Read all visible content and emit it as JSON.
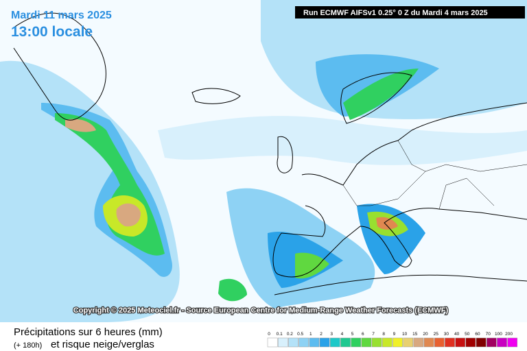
{
  "header": {
    "date": "Mardi 11 mars 2025",
    "time": "13:00 locale",
    "run": "Run ECMWF AIFSv1 0.25° 0 Z du Mardi 4 mars 2025"
  },
  "map": {
    "copyright": "Copyright © 2025 Meteociel.fr - Source European Centre for Medium-Range Weather Forecasts (ECMWF)"
  },
  "legend": {
    "title": "Précipitations sur 6 heures (mm)",
    "lead_time": "(+ 180h)",
    "subtitle": "et risque neige/verglas",
    "levels": [
      {
        "value": 0,
        "color": "#ffffff"
      },
      {
        "value": 0.1,
        "color": "#d8f0fc"
      },
      {
        "value": 0.2,
        "color": "#b4e2f8"
      },
      {
        "value": 0.5,
        "color": "#8ed2f4"
      },
      {
        "value": 1,
        "color": "#5cbcf0"
      },
      {
        "value": 2,
        "color": "#2aa2e8"
      },
      {
        "value": 3,
        "color": "#1ec8c8"
      },
      {
        "value": 4,
        "color": "#20c890"
      },
      {
        "value": 5,
        "color": "#30d060"
      },
      {
        "value": 6,
        "color": "#60d840"
      },
      {
        "value": 7,
        "color": "#98e030"
      },
      {
        "value": 8,
        "color": "#c8e828"
      },
      {
        "value": 9,
        "color": "#f0f028"
      },
      {
        "value": 10,
        "color": "#e8d070"
      },
      {
        "value": 15,
        "color": "#d8a880"
      },
      {
        "value": 20,
        "color": "#e08850"
      },
      {
        "value": 25,
        "color": "#e86030"
      },
      {
        "value": 30,
        "color": "#e03020"
      },
      {
        "value": 40,
        "color": "#c81010"
      },
      {
        "value": 50,
        "color": "#a00000"
      },
      {
        "value": 60,
        "color": "#800000"
      },
      {
        "value": 70,
        "color": "#a00060"
      },
      {
        "value": 100,
        "color": "#c800c0"
      },
      {
        "value": 200,
        "color": "#f000f0"
      }
    ]
  }
}
